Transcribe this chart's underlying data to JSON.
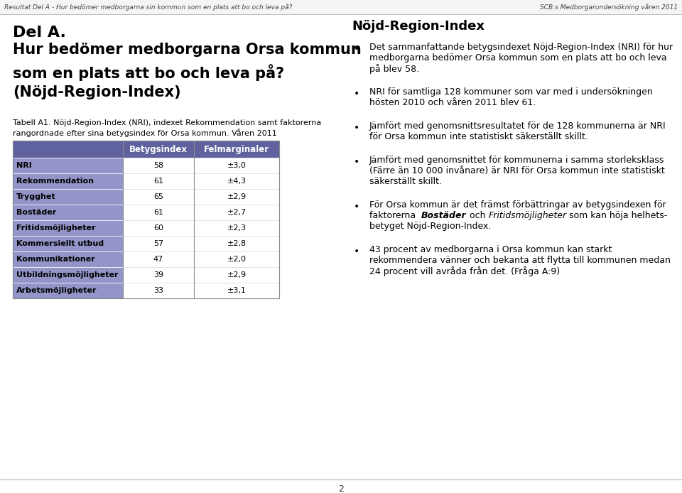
{
  "header_left": "Resultat Del A - Hur bedömer medborgarna sin kommun som en plats att bo och leva på?",
  "header_right": "SCB:s Medborgarundersökning våren 2011",
  "section_left_line1": "Del A.",
  "title_left_lines": [
    "Hur bedömer medborgarna Orsa kommun",
    "som en plats att bo och leva på?",
    "(Nöjd-Region-Index)"
  ],
  "right_heading": "Nöjd-Region-Index",
  "table_caption_lines": [
    "Tabell A1. Nöjd-Region-Index (NRI), indexet Rekommendation samt faktorerna",
    "rangordnade efter sina betygsindex för Orsa kommun. Våren 2011"
  ],
  "col_header1": "Betygsindex",
  "col_header2": "Felmarginaler",
  "rows": [
    {
      "label": "NRI",
      "index": "58",
      "margin": "±3,0"
    },
    {
      "label": "Rekommendation",
      "index": "61",
      "margin": "±4,3"
    },
    {
      "label": "Trygghet",
      "index": "65",
      "margin": "±2,9"
    },
    {
      "label": "Bostäder",
      "index": "61",
      "margin": "±2,7"
    },
    {
      "label": "Fritidsmöjligheter",
      "index": "60",
      "margin": "±2,3"
    },
    {
      "label": "Kommersiellt utbud",
      "index": "57",
      "margin": "±2,8"
    },
    {
      "label": "Kommunikationer",
      "index": "47",
      "margin": "±2,0"
    },
    {
      "label": "Utbildningsmöjligheter",
      "index": "39",
      "margin": "±2,9"
    },
    {
      "label": "Arbetsmöjligheter",
      "index": "33",
      "margin": "±3,1"
    }
  ],
  "header_bg": "#6062a0",
  "row_bg": "#9395c8",
  "header_text_color": "#ffffff",
  "bullet_points_plain": [
    [
      "Det sammanfattande betygsindexet Nöjd-Region-Index (NRI) för hur",
      "medborgarna bedömer Orsa kommun som en plats att bo och leva",
      "på blev 58."
    ],
    [
      "NRI för samtliga 128 kommuner som var med i undersökningen",
      "hösten 2010 och våren 2011 blev 61."
    ],
    [
      "Jämfört med genomsnittsresultatet för de 128 kommunerna är NRI",
      "för Orsa kommun inte statistiskt säkerställt skillt."
    ],
    [
      "Jämfört med genomsnittet för kommunerna i samma storleksklass",
      "(Färre än 10 000 invånare) är NRI för Orsa kommun inte statistiskt",
      "säkerställt skillt."
    ],
    [
      "För Orsa kommun är det främst förbättringar av betygsindexen för"
    ],
    [
      "43 procent av medborgarna i Orsa kommun kan starkt",
      "rekommendera vänner och bekanta att flytta till kommunen medan",
      "24 procent vill avråda från det. (Fråga A:9)"
    ]
  ],
  "bullet5_line2_parts": [
    {
      "text": "faktorerna  ",
      "bold": false,
      "italic": false
    },
    {
      "text": "Bostäder",
      "bold": true,
      "italic": true
    },
    {
      "text": " och ",
      "bold": false,
      "italic": false
    },
    {
      "text": "Fritidsmöjligheter",
      "bold": false,
      "italic": true
    },
    {
      "text": " som kan höja helhets-",
      "bold": false,
      "italic": false
    }
  ],
  "bullet5_line3": "betyget Nöjd-Region-Index.",
  "footer_page": "2",
  "bg_color": "#ffffff"
}
